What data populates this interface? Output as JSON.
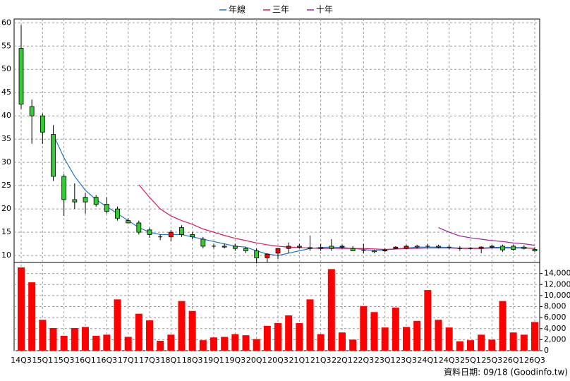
{
  "chart_data": {
    "type": "candlestick",
    "categories": [
      "14Q3",
      null,
      "15Q1",
      null,
      "15Q3",
      null,
      "16Q1",
      null,
      "16Q3",
      null,
      "17Q1",
      null,
      "17Q3",
      null,
      "18Q1",
      null,
      "18Q3",
      null,
      "19Q1",
      null,
      "19Q3",
      null,
      "20Q1",
      null,
      "20Q3",
      null,
      "21Q1",
      null,
      "21Q3",
      null,
      "22Q1",
      null,
      "22Q3",
      null,
      "23Q1",
      null,
      "23Q3",
      null,
      "24Q1",
      null,
      "24Q3",
      null,
      "25Q1",
      null,
      "25Q3",
      null,
      "26Q1",
      null,
      "26Q3"
    ],
    "open": [
      54.5,
      42,
      40,
      36,
      27,
      22,
      22.5,
      22.5,
      21,
      20,
      17.5,
      17,
      15.5,
      14,
      14,
      16,
      14.5,
      13.5,
      12,
      12,
      12,
      11.5,
      11,
      9.5,
      10.5,
      11.5,
      12,
      11.5,
      11.5,
      12,
      11.8,
      11.5,
      11,
      11,
      11,
      11.5,
      11.5,
      12,
      12,
      12,
      11.8,
      11.5,
      11.5,
      11.5,
      11.8,
      12,
      12,
      11.8,
      11.3
    ],
    "high": [
      59.5,
      43.5,
      40.5,
      38,
      27.5,
      25.5,
      23.5,
      23,
      22.5,
      20.5,
      18,
      17.5,
      16,
      14.5,
      15.5,
      16.5,
      15,
      14,
      12.5,
      12.5,
      12.5,
      11.8,
      11.5,
      10.5,
      11.5,
      12.8,
      12.5,
      14.3,
      12.5,
      13.5,
      12.3,
      12,
      12.5,
      11.2,
      11.5,
      12,
      12.3,
      12.3,
      12.5,
      12.3,
      12.3,
      12,
      11.8,
      12,
      12.3,
      12.3,
      12.3,
      12.2,
      11.8
    ],
    "low": [
      41.5,
      34,
      34,
      26,
      18.5,
      20,
      19,
      20.5,
      19,
      17.5,
      17,
      14.5,
      13.8,
      13.3,
      13,
      14,
      13.5,
      11.5,
      11.5,
      11.5,
      11,
      10.5,
      8.3,
      8.5,
      9.2,
      10.5,
      11.5,
      11,
      11,
      11,
      11.5,
      11,
      10.5,
      10.5,
      10.8,
      11.3,
      11.3,
      11.5,
      11.5,
      11.5,
      11.3,
      11,
      11.2,
      10.5,
      11.5,
      10.8,
      11,
      11.3,
      10.8
    ],
    "close": [
      42.5,
      40,
      36.5,
      27,
      22,
      21.5,
      21.5,
      21,
      19.5,
      18,
      17,
      15,
      14.5,
      14,
      15,
      14.5,
      14,
      12,
      12,
      11.8,
      11.5,
      11,
      9.5,
      10.3,
      11.5,
      12,
      11.8,
      11.7,
      11.7,
      11.5,
      12,
      11,
      11,
      10.8,
      11.2,
      11.8,
      12,
      11.8,
      12,
      11.8,
      11.8,
      11.5,
      11.5,
      11.8,
      12,
      11.2,
      11.3,
      11.5,
      11
    ],
    "up_color": "#ff0000",
    "down_color": "#33cc33",
    "series": [
      {
        "name": "年線",
        "color": "#1f77c9",
        "values": [
          null,
          null,
          null,
          36,
          31,
          27,
          24,
          22,
          20.5,
          19,
          17.5,
          16,
          15,
          14.5,
          14.5,
          14.5,
          14,
          13.5,
          13,
          12.5,
          12,
          11.8,
          11,
          10.3,
          10,
          10.5,
          11,
          11.5,
          11.7,
          11.8,
          11.7,
          11.5,
          11.3,
          11,
          11.2,
          11.4,
          11.6,
          11.8,
          11.8,
          11.8,
          11.7,
          11.6,
          11.6,
          11.6,
          11.7,
          11.8,
          11.7,
          11.7,
          11.5
        ]
      },
      {
        "name": "三年",
        "color": "#d81b5a",
        "values": [
          null,
          null,
          null,
          null,
          null,
          null,
          null,
          null,
          null,
          null,
          null,
          25.2,
          22.5,
          20,
          18.5,
          17.5,
          16.7,
          15.7,
          15,
          14.3,
          13.7,
          13.2,
          12.7,
          12.3,
          12,
          11.8,
          11.7,
          11.6,
          11.5,
          11.5,
          11.5,
          11.5,
          11.5,
          11.4,
          11.3,
          11.4,
          11.5,
          11.5,
          11.6,
          11.6,
          11.6,
          11.5,
          11.5,
          11.5,
          11.6,
          11.6,
          11.6,
          11.6,
          11.5
        ]
      },
      {
        "name": "十年",
        "color": "#a020a0",
        "values": [
          null,
          null,
          null,
          null,
          null,
          null,
          null,
          null,
          null,
          null,
          null,
          null,
          null,
          null,
          null,
          null,
          null,
          null,
          null,
          null,
          null,
          null,
          null,
          null,
          null,
          null,
          null,
          null,
          null,
          null,
          null,
          null,
          null,
          null,
          null,
          null,
          null,
          null,
          null,
          16,
          15,
          14.2,
          13.8,
          13.5,
          13.2,
          13,
          12.7,
          12.5,
          12.2
        ]
      }
    ],
    "volume": {
      "color": "#ff0000",
      "values": [
        15100,
        12400,
        5600,
        4100,
        2700,
        4100,
        4300,
        2700,
        2900,
        9300,
        2500,
        6700,
        5500,
        1800,
        2900,
        9000,
        7200,
        1900,
        2400,
        2500,
        3000,
        2800,
        2100,
        4500,
        5000,
        6400,
        5000,
        9300,
        3000,
        14800,
        3300,
        2000,
        8100,
        7000,
        4200,
        7800,
        4300,
        5400,
        11000,
        5600,
        4200,
        1700,
        1900,
        2900,
        2000,
        9000,
        3300,
        2900,
        5200
      ]
    },
    "ylim": [
      8.5,
      60.8
    ],
    "yticks": [
      10,
      15,
      20,
      25,
      30,
      35,
      40,
      45,
      50,
      55,
      60
    ],
    "y2lim": [
      0,
      16000
    ],
    "y2ticks": [
      0,
      {
        "value": 2000,
        "label": "2,000"
      },
      {
        "value": 4000,
        "label": "4,000"
      },
      {
        "value": 6000,
        "label": "6,000"
      },
      {
        "value": 8000,
        "label": "8,000"
      },
      {
        "value": 10000,
        "label": "10,000"
      },
      {
        "value": 12000,
        "label": "12,000"
      },
      {
        "value": 14000,
        "label": "14,000"
      }
    ],
    "grid": true,
    "footer": "資料日期: 09/18  (Goodinfo.tw)"
  }
}
